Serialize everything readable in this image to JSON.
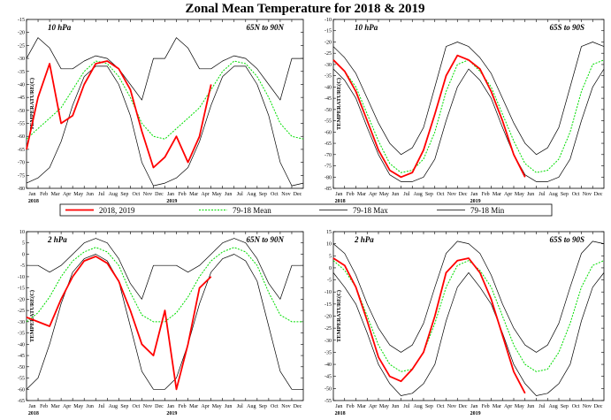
{
  "title": "Zonal Mean Temperature for 2018 & 2019",
  "colors": {
    "obs": "#ff0000",
    "mean": "#00dd00",
    "max": "#000000",
    "min": "#000000"
  },
  "legend": [
    {
      "label": "2018, 2019",
      "style": "obs"
    },
    {
      "label": "79-18 Mean",
      "style": "mean"
    },
    {
      "label": "79-18 Max",
      "style": "max"
    },
    {
      "label": "79-18 Min",
      "style": "min"
    }
  ],
  "chart_data": [
    {
      "type": "line",
      "level": "10 hPa",
      "region": "65N to 90N",
      "ylabel": "TEMPERATURE(C)",
      "ylim": [
        -80,
        -15
      ],
      "yticks": [
        -80,
        -75,
        -70,
        -65,
        -60,
        -55,
        -50,
        -45,
        -40,
        -35,
        -30,
        -25,
        -20,
        -15
      ],
      "month_labels": [
        "Jan",
        "Feb",
        "Mar",
        "Apr",
        "May",
        "Jun",
        "Jul",
        "Aug",
        "Sep",
        "Oct",
        "Nov",
        "Dec",
        "Jan",
        "Feb",
        "Mar",
        "Apr",
        "May",
        "Jun",
        "Jul",
        "Aug",
        "Sep",
        "Oct",
        "Nov",
        "Dec"
      ],
      "years": [
        "2018",
        "2019"
      ],
      "series": [
        {
          "name": "2018, 2019",
          "style": "obs",
          "x": [
            0,
            1,
            2,
            3,
            4,
            5,
            6,
            7,
            8,
            9,
            10,
            11,
            12,
            13,
            14,
            15,
            16
          ],
          "y": [
            -65,
            -45,
            -32,
            -55,
            -52,
            -40,
            -32,
            -31,
            -34,
            -42,
            -58,
            -72,
            -68,
            -60,
            -70,
            -60,
            -40
          ]
        },
        {
          "name": "79-18 Mean",
          "style": "mean",
          "x": [
            0,
            1,
            2,
            3,
            4,
            5,
            6,
            7,
            8,
            9,
            10,
            11,
            12,
            13,
            14,
            15,
            16,
            17,
            18,
            19,
            20,
            21,
            22,
            23,
            24
          ],
          "y": [
            -61,
            -57,
            -53,
            -49,
            -42,
            -35,
            -31,
            -32,
            -37,
            -45,
            -55,
            -60,
            -61,
            -57,
            -53,
            -49,
            -42,
            -35,
            -31,
            -32,
            -37,
            -45,
            -55,
            -60,
            -61
          ]
        },
        {
          "name": "79-18 Max",
          "style": "max",
          "x": [
            0,
            1,
            2,
            3,
            4,
            5,
            6,
            7,
            8,
            9,
            10,
            11,
            12,
            13,
            14,
            15,
            16,
            17,
            18,
            19,
            20,
            21,
            22,
            23,
            24
          ],
          "y": [
            -30,
            -22,
            -26,
            -34,
            -34,
            -31,
            -29,
            -30,
            -34,
            -40,
            -46,
            -30,
            -30,
            -22,
            -26,
            -34,
            -34,
            -31,
            -29,
            -30,
            -34,
            -40,
            -46,
            -30,
            -30
          ]
        },
        {
          "name": "79-18 Min",
          "style": "min",
          "x": [
            0,
            1,
            2,
            3,
            4,
            5,
            6,
            7,
            8,
            9,
            10,
            11,
            12,
            13,
            14,
            15,
            16,
            17,
            18,
            19,
            20,
            21,
            22,
            23,
            24
          ],
          "y": [
            -78,
            -76,
            -72,
            -62,
            -48,
            -37,
            -33,
            -33,
            -40,
            -52,
            -70,
            -79,
            -78,
            -76,
            -72,
            -62,
            -48,
            -37,
            -33,
            -33,
            -40,
            -52,
            -70,
            -79,
            -78
          ]
        }
      ]
    },
    {
      "type": "line",
      "level": "10 hPa",
      "region": "65S to 90S",
      "ylabel": "TEMPERATURE(C)",
      "ylim": [
        -85,
        -10
      ],
      "yticks": [
        -85,
        -80,
        -75,
        -70,
        -65,
        -60,
        -55,
        -50,
        -45,
        -40,
        -35,
        -30,
        -25,
        -20,
        -15,
        -10
      ],
      "month_labels": [
        "Jan",
        "Feb",
        "Mar",
        "Apr",
        "May",
        "Jun",
        "Jul",
        "Aug",
        "Sep",
        "Oct",
        "Nov",
        "Dec",
        "Jan",
        "Feb",
        "Mar",
        "Apr",
        "May",
        "Jun",
        "Jul",
        "Aug",
        "Sep",
        "Oct",
        "Nov",
        "Dec"
      ],
      "years": [
        "2018",
        "2019"
      ],
      "series": [
        {
          "name": "2018, 2019",
          "style": "obs",
          "x": [
            0,
            1,
            2,
            3,
            4,
            5,
            6,
            7,
            8,
            9,
            10,
            11,
            12,
            13,
            14,
            15,
            16,
            17
          ],
          "y": [
            -28,
            -33,
            -42,
            -55,
            -68,
            -77,
            -80,
            -78,
            -68,
            -52,
            -35,
            -26,
            -28,
            -32,
            -42,
            -55,
            -70,
            -80
          ]
        },
        {
          "name": "79-18 Mean",
          "style": "mean",
          "x": [
            0,
            1,
            2,
            3,
            4,
            5,
            6,
            7,
            8,
            9,
            10,
            11,
            12,
            13,
            14,
            15,
            16,
            17,
            18,
            19,
            20,
            21,
            22,
            23,
            24
          ],
          "y": [
            -28,
            -33,
            -40,
            -52,
            -64,
            -74,
            -78,
            -77,
            -72,
            -60,
            -42,
            -30,
            -28,
            -33,
            -40,
            -52,
            -64,
            -74,
            -78,
            -77,
            -72,
            -60,
            -42,
            -30,
            -28
          ]
        },
        {
          "name": "79-18 Max",
          "style": "max",
          "x": [
            0,
            1,
            2,
            3,
            4,
            5,
            6,
            7,
            8,
            9,
            10,
            11,
            12,
            13,
            14,
            15,
            16,
            17,
            18,
            19,
            20,
            21,
            22,
            23,
            24
          ],
          "y": [
            -22,
            -27,
            -34,
            -45,
            -56,
            -65,
            -70,
            -67,
            -58,
            -40,
            -22,
            -20,
            -22,
            -27,
            -34,
            -45,
            -56,
            -65,
            -70,
            -67,
            -58,
            -40,
            -22,
            -20,
            -22
          ]
        },
        {
          "name": "79-18 Min",
          "style": "min",
          "x": [
            0,
            1,
            2,
            3,
            4,
            5,
            6,
            7,
            8,
            9,
            10,
            11,
            12,
            13,
            14,
            15,
            16,
            17,
            18,
            19,
            20,
            21,
            22,
            23,
            24
          ],
          "y": [
            -32,
            -37,
            -45,
            -58,
            -70,
            -79,
            -82,
            -82,
            -80,
            -72,
            -55,
            -40,
            -32,
            -37,
            -45,
            -58,
            -70,
            -79,
            -82,
            -82,
            -80,
            -72,
            -55,
            -40,
            -32
          ]
        }
      ]
    },
    {
      "type": "line",
      "level": "2 hPa",
      "region": "65N to 90N",
      "ylabel": "TEMPERATURE(C)",
      "ylim": [
        -65,
        10
      ],
      "yticks": [
        -65,
        -60,
        -55,
        -50,
        -45,
        -40,
        -35,
        -30,
        -25,
        -20,
        -15,
        -10,
        -5,
        0,
        5,
        10
      ],
      "month_labels": [
        "Jan",
        "Feb",
        "Mar",
        "Apr",
        "May",
        "Jun",
        "Jul",
        "Aug",
        "Sep",
        "Oct",
        "Nov",
        "Dec",
        "Jan",
        "Feb",
        "Mar",
        "Apr",
        "May",
        "Jun",
        "Jul",
        "Aug",
        "Sep",
        "Oct",
        "Nov",
        "Dec"
      ],
      "years": [
        "2018",
        "2019"
      ],
      "series": [
        {
          "name": "2018, 2019",
          "style": "obs",
          "x": [
            0,
            1,
            2,
            3,
            4,
            5,
            6,
            7,
            8,
            9,
            10,
            11,
            12,
            13,
            14,
            15,
            16
          ],
          "y": [
            -28,
            -30,
            -32,
            -20,
            -10,
            -3,
            -1,
            -4,
            -12,
            -25,
            -40,
            -45,
            -25,
            -60,
            -40,
            -15,
            -10
          ]
        },
        {
          "name": "79-18 Mean",
          "style": "mean",
          "x": [
            0,
            1,
            2,
            3,
            4,
            5,
            6,
            7,
            8,
            9,
            10,
            11,
            12,
            13,
            14,
            15,
            16,
            17,
            18,
            19,
            20,
            21,
            22,
            23,
            24
          ],
          "y": [
            -30,
            -26,
            -19,
            -10,
            -3,
            1,
            3,
            1,
            -5,
            -17,
            -27,
            -30,
            -30,
            -26,
            -19,
            -10,
            -3,
            1,
            3,
            1,
            -5,
            -17,
            -27,
            -30,
            -30
          ]
        },
        {
          "name": "79-18 Max",
          "style": "max",
          "x": [
            0,
            1,
            2,
            3,
            4,
            5,
            6,
            7,
            8,
            9,
            10,
            11,
            12,
            13,
            14,
            15,
            16,
            17,
            18,
            19,
            20,
            21,
            22,
            23,
            24
          ],
          "y": [
            -5,
            -5,
            -8,
            -5,
            0,
            5,
            7,
            5,
            -2,
            -13,
            -20,
            -5,
            -5,
            -5,
            -8,
            -5,
            0,
            5,
            7,
            5,
            -2,
            -13,
            -20,
            -5,
            -5
          ]
        },
        {
          "name": "79-18 Min",
          "style": "min",
          "x": [
            0,
            1,
            2,
            3,
            4,
            5,
            6,
            7,
            8,
            9,
            10,
            11,
            12,
            13,
            14,
            15,
            16,
            17,
            18,
            19,
            20,
            21,
            22,
            23,
            24
          ],
          "y": [
            -60,
            -55,
            -40,
            -22,
            -8,
            -2,
            0,
            -3,
            -12,
            -32,
            -52,
            -60,
            -60,
            -55,
            -40,
            -22,
            -8,
            -2,
            0,
            -3,
            -12,
            -32,
            -52,
            -60,
            -60
          ]
        }
      ]
    },
    {
      "type": "line",
      "level": "2 hPa",
      "region": "65S to 90S",
      "ylabel": "TEMPERATURE(C)",
      "ylim": [
        -55,
        15
      ],
      "yticks": [
        -55,
        -50,
        -45,
        -40,
        -35,
        -30,
        -25,
        -20,
        -15,
        -10,
        -5,
        0,
        5,
        10,
        15
      ],
      "month_labels": [
        "Jan",
        "Feb",
        "Mar",
        "Apr",
        "May",
        "Jun",
        "Jul",
        "Aug",
        "Sep",
        "Oct",
        "Nov",
        "Dec",
        "Jan",
        "Feb",
        "Mar",
        "Apr",
        "May",
        "Jun",
        "Jul",
        "Aug",
        "Sep",
        "Oct",
        "Nov",
        "Dec"
      ],
      "years": [
        "2018",
        "2019"
      ],
      "series": [
        {
          "name": "2018, 2019",
          "style": "obs",
          "x": [
            0,
            1,
            2,
            3,
            4,
            5,
            6,
            7,
            8,
            9,
            10,
            11,
            12,
            13,
            14,
            15,
            16,
            17
          ],
          "y": [
            4,
            1,
            -8,
            -22,
            -37,
            -45,
            -47,
            -42,
            -35,
            -20,
            -2,
            3,
            4,
            -2,
            -13,
            -28,
            -43,
            -52
          ]
        },
        {
          "name": "79-18 Mean",
          "style": "mean",
          "x": [
            0,
            1,
            2,
            3,
            4,
            5,
            6,
            7,
            8,
            9,
            10,
            11,
            12,
            13,
            14,
            15,
            16,
            17,
            18,
            19,
            20,
            21,
            22,
            23,
            24
          ],
          "y": [
            3,
            -1,
            -8,
            -20,
            -32,
            -40,
            -43,
            -42,
            -35,
            -23,
            -8,
            1,
            3,
            -1,
            -8,
            -20,
            -32,
            -40,
            -43,
            -42,
            -35,
            -23,
            -8,
            1,
            3
          ]
        },
        {
          "name": "79-18 Max",
          "style": "max",
          "x": [
            0,
            1,
            2,
            3,
            4,
            5,
            6,
            7,
            8,
            9,
            10,
            11,
            12,
            13,
            14,
            15,
            16,
            17,
            18,
            19,
            20,
            21,
            22,
            23,
            24
          ],
          "y": [
            10,
            6,
            -3,
            -15,
            -25,
            -32,
            -35,
            -32,
            -23,
            -8,
            6,
            11,
            10,
            6,
            -3,
            -15,
            -25,
            -32,
            -35,
            -32,
            -23,
            -8,
            6,
            11,
            10
          ]
        },
        {
          "name": "79-18 Min",
          "style": "min",
          "x": [
            0,
            1,
            2,
            3,
            4,
            5,
            6,
            7,
            8,
            9,
            10,
            11,
            12,
            13,
            14,
            15,
            16,
            17,
            18,
            19,
            20,
            21,
            22,
            23,
            24
          ],
          "y": [
            -2,
            -8,
            -15,
            -27,
            -40,
            -48,
            -53,
            -52,
            -48,
            -40,
            -22,
            -8,
            -2,
            -8,
            -15,
            -27,
            -40,
            -48,
            -53,
            -52,
            -48,
            -40,
            -22,
            -8,
            -2
          ]
        }
      ]
    }
  ]
}
